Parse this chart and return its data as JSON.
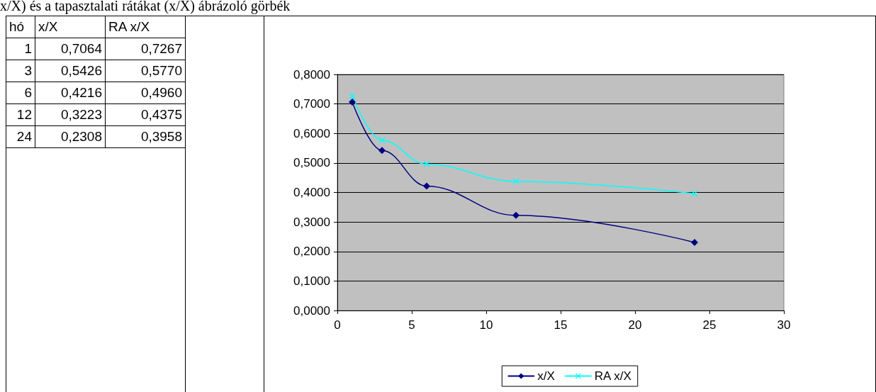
{
  "chart_data": [
    {
      "type": "other",
      "annotations": [
        "hó",
        "x/X",
        "RA x/X",
        "1",
        "0,7064",
        "0,7267",
        "3",
        "0,5426",
        "0,5770",
        "6",
        "0,4216",
        "0,4960",
        "12",
        "0,3223",
        "0,4375",
        "24",
        "0,2308",
        "0,3958"
      ]
    },
    {
      "type": "line",
      "title": "x/X) és a tapasztalati rátákat (x/X) ábrázoló görbék",
      "x": [
        1,
        3,
        6,
        12,
        24
      ],
      "series": [
        {
          "name": "x/X",
          "color": "#000080",
          "marker": "diamond",
          "values": [
            0.7064,
            0.5426,
            0.4216,
            0.3223,
            0.2308
          ]
        },
        {
          "name": "RA x/X",
          "color": "#00ffff",
          "marker": "cross",
          "values": [
            0.7267,
            0.577,
            0.496,
            0.4375,
            0.3958
          ]
        }
      ],
      "xlim": [
        0,
        30
      ],
      "xticks": [
        0,
        5,
        10,
        15,
        20,
        25,
        30
      ],
      "ylim": [
        0,
        0.8
      ],
      "yticks": [
        {
          "value": 0,
          "label": "0,0000"
        },
        {
          "value": 0.1,
          "label": "0,1000"
        },
        {
          "value": 0.2,
          "label": "0,2000"
        },
        {
          "value": 0.3,
          "label": "0,3000"
        },
        {
          "value": 0.4,
          "label": "0,4000"
        },
        {
          "value": 0.5,
          "label": "0,5000"
        },
        {
          "value": 0.6,
          "label": "0,6000"
        },
        {
          "value": 0.7,
          "label": "0,7000"
        },
        {
          "value": 0.8,
          "label": "0,8000"
        }
      ],
      "grid": "y",
      "legend": "bottom"
    }
  ]
}
